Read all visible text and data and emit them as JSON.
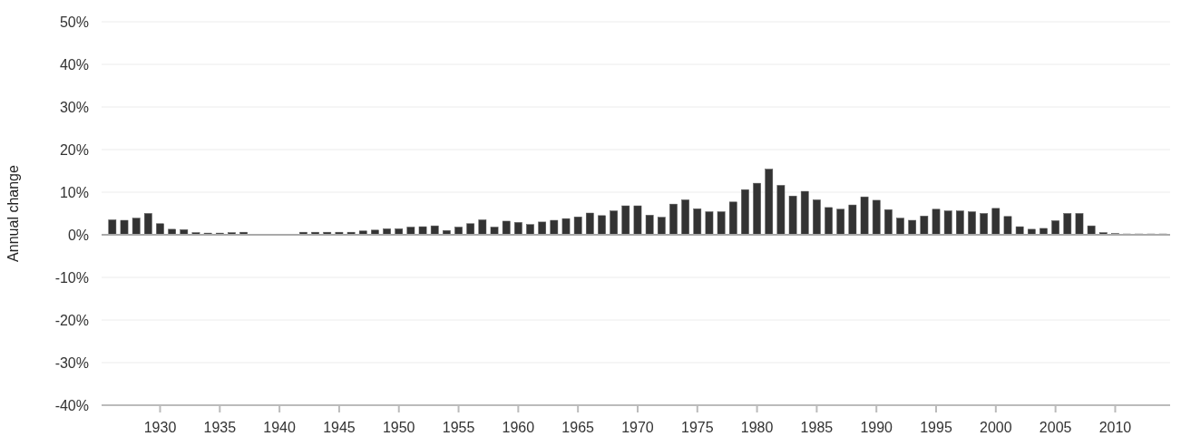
{
  "chart_data": {
    "type": "bar",
    "ylabel": "Annual change",
    "x": [
      1926,
      1927,
      1928,
      1929,
      1930,
      1931,
      1932,
      1933,
      1934,
      1935,
      1936,
      1937,
      1938,
      1939,
      1940,
      1941,
      1942,
      1943,
      1944,
      1945,
      1946,
      1947,
      1948,
      1949,
      1950,
      1951,
      1952,
      1953,
      1954,
      1955,
      1956,
      1957,
      1958,
      1959,
      1960,
      1961,
      1962,
      1963,
      1964,
      1965,
      1966,
      1967,
      1968,
      1969,
      1970,
      1971,
      1972,
      1973,
      1974,
      1975,
      1976,
      1977,
      1978,
      1979,
      1980,
      1981,
      1982,
      1983,
      1984,
      1985,
      1986,
      1987,
      1988,
      1989,
      1990,
      1991,
      1992,
      1993,
      1994,
      1995,
      1996,
      1997,
      1998,
      1999,
      2000,
      2001,
      2002,
      2003,
      2004,
      2005,
      2006,
      2007,
      2008,
      2009,
      2010,
      2011,
      2012,
      2013,
      2014
    ],
    "values": [
      3.5,
      3.4,
      3.9,
      5.0,
      2.6,
      1.3,
      1.2,
      0.5,
      0.4,
      0.4,
      0.5,
      0.6,
      0.1,
      0.1,
      0.1,
      0.1,
      0.6,
      0.6,
      0.6,
      0.6,
      0.6,
      0.9,
      1.1,
      1.4,
      1.4,
      1.8,
      1.9,
      2.1,
      1.0,
      1.8,
      2.6,
      3.5,
      1.8,
      3.2,
      2.9,
      2.4,
      3.0,
      3.4,
      3.8,
      4.2,
      5.1,
      4.5,
      5.6,
      6.8,
      6.8,
      4.6,
      4.1,
      7.2,
      8.2,
      6.1,
      5.4,
      5.4,
      7.7,
      10.6,
      12.1,
      15.4,
      11.6,
      9.1,
      10.2,
      8.2,
      6.4,
      6.0,
      7.0,
      8.9,
      8.1,
      5.9,
      3.9,
      3.4,
      4.4,
      6.0,
      5.6,
      5.6,
      5.4,
      5.0,
      6.2,
      4.3,
      1.9,
      1.3,
      1.5,
      3.3,
      5.0,
      5.0,
      2.1,
      0.5,
      0.3,
      0.2,
      0.2,
      0.2,
      0.2
    ],
    "color": "#333333",
    "xlim": [
      1925.1,
      2014.6
    ],
    "xticks": [
      1930,
      1935,
      1940,
      1945,
      1950,
      1955,
      1960,
      1965,
      1970,
      1975,
      1980,
      1985,
      1990,
      1995,
      2000,
      2005,
      2010
    ],
    "ylim": [
      -40,
      50
    ],
    "yticks": [
      {
        "value": -40,
        "label": "-40%"
      },
      {
        "value": -30,
        "label": "-30%"
      },
      {
        "value": -20,
        "label": "-20%"
      },
      {
        "value": -10,
        "label": "-10%"
      },
      {
        "value": 0,
        "label": "0%"
      },
      {
        "value": 10,
        "label": "10%"
      },
      {
        "value": 20,
        "label": "20%"
      },
      {
        "value": 30,
        "label": "30%"
      },
      {
        "value": 40,
        "label": "40%"
      },
      {
        "value": 50,
        "label": "50%"
      }
    ],
    "grid": "y"
  }
}
